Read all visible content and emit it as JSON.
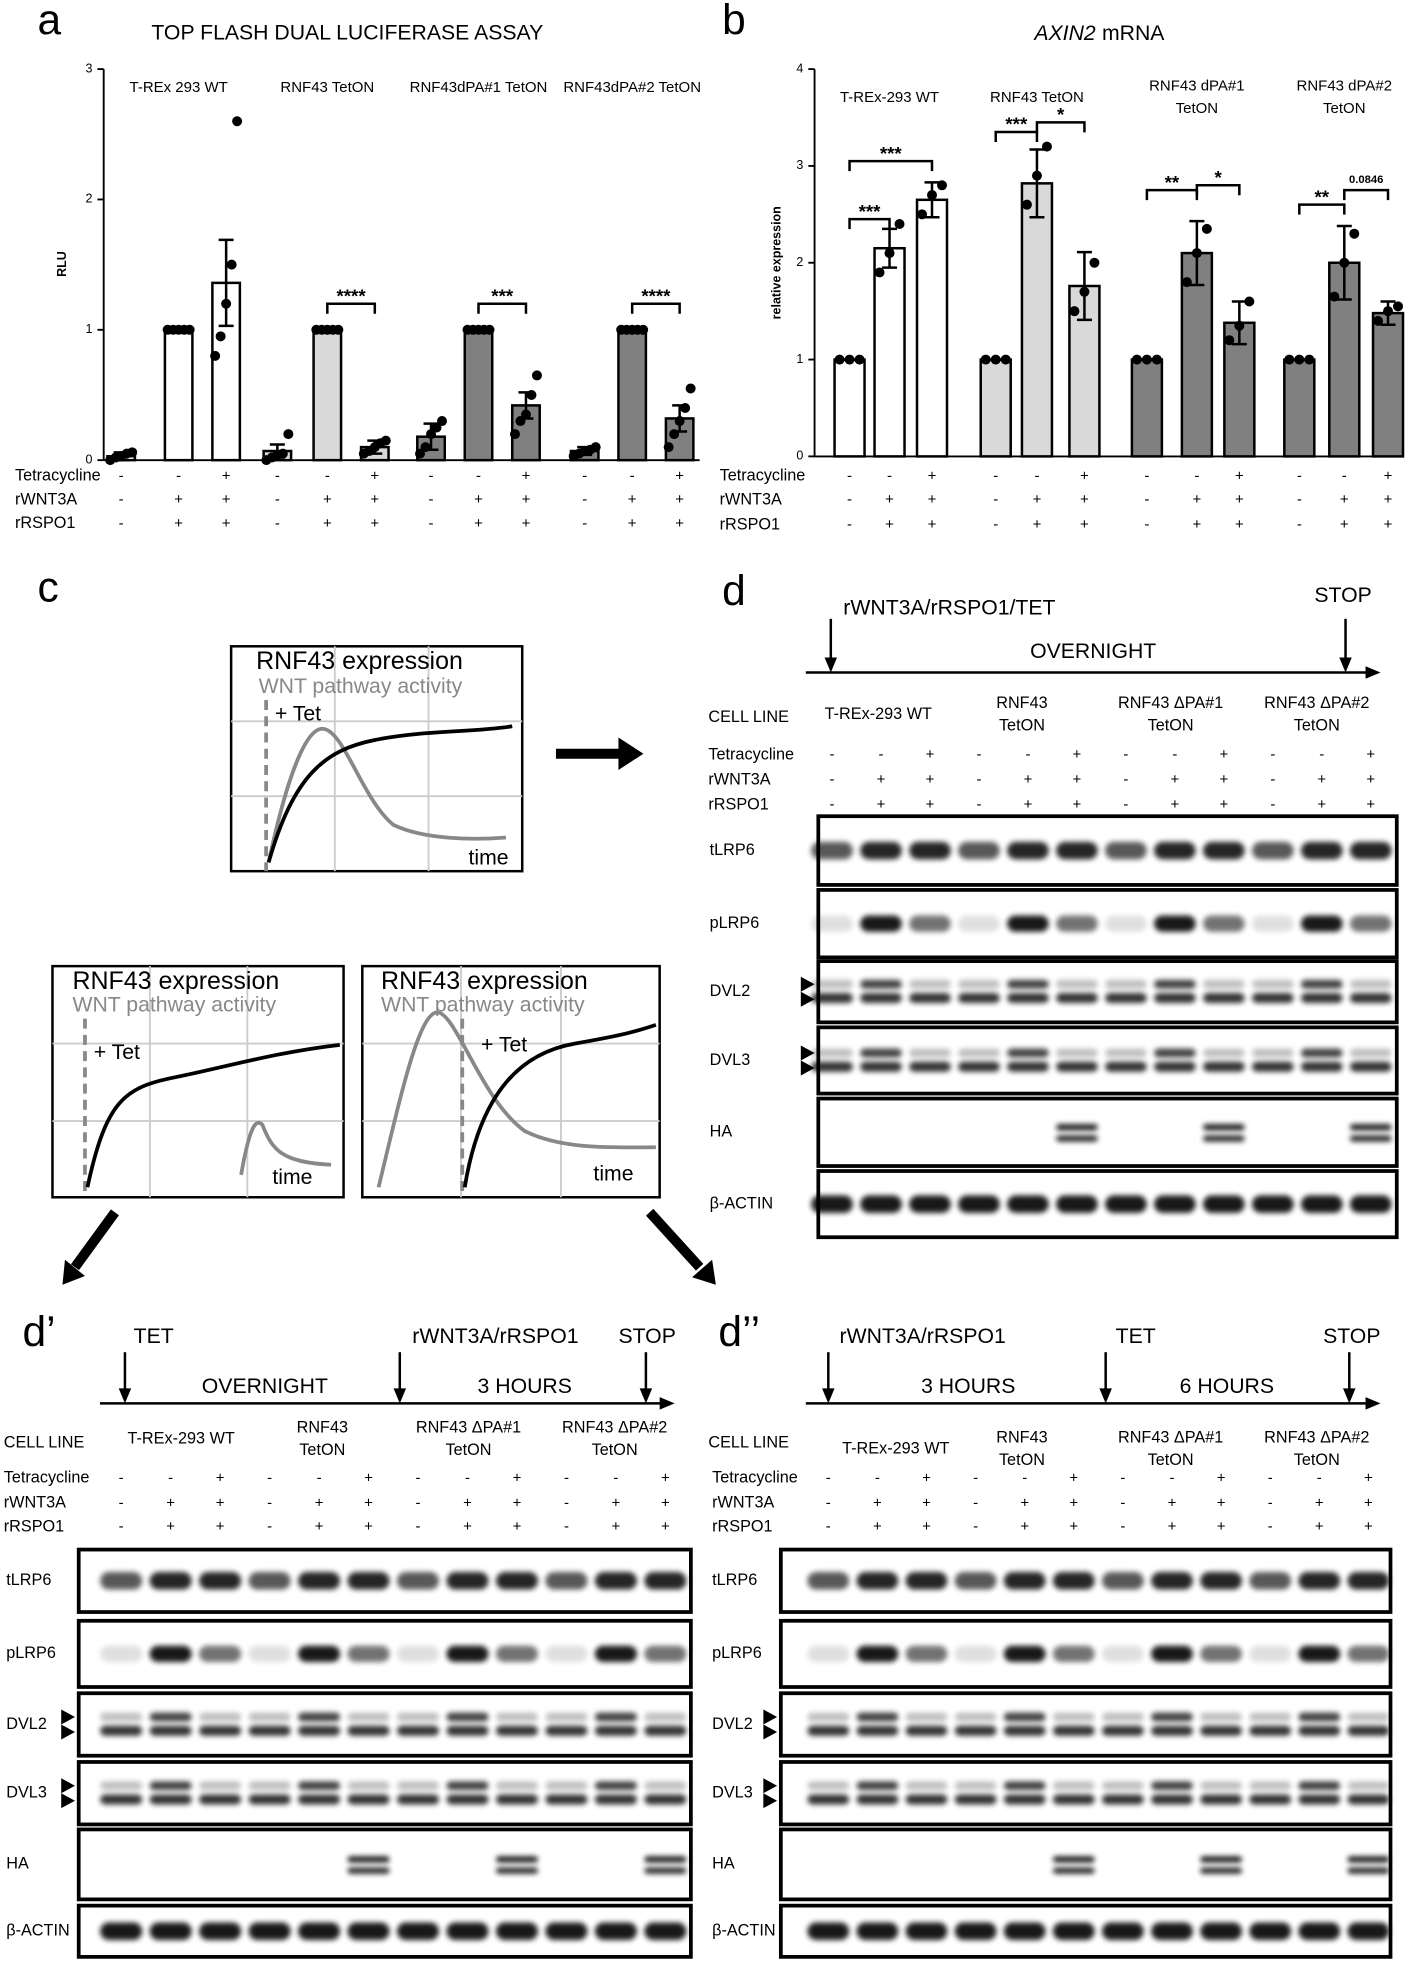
{
  "chart_data": [
    {
      "type": "bar",
      "panel": "a",
      "title": "TOP FLASH DUAL LUCIFERASE ASSAY",
      "y_label": "RLU",
      "groups": [
        [
          "T-REx 293 WT"
        ],
        [
          "RNF43 TetON"
        ],
        [
          "RNF43dPA#1 TetON"
        ],
        [
          "RNF43dPA#2 TetON"
        ]
      ],
      "values": [
        0.03,
        1,
        1.36,
        0.07,
        1,
        0.1,
        0.18,
        1,
        0.42,
        0.07,
        1,
        0.32
      ],
      "errors": [
        0.03,
        0,
        0.33,
        0.05,
        0,
        0.05,
        0.1,
        0,
        0.1,
        0.03,
        0,
        0.1
      ],
      "points": [
        [
          0,
          0.02,
          0.03,
          0.05,
          0.06
        ],
        [
          1,
          1,
          1,
          1,
          1
        ],
        [
          0.8,
          0.95,
          1.2,
          1.5,
          2.6
        ],
        [
          0,
          0.02,
          0.04,
          0.05,
          0.2
        ],
        [
          1,
          1,
          1,
          1,
          1
        ],
        [
          0.05,
          0.07,
          0.1,
          0.13,
          0.15
        ],
        [
          0.05,
          0.1,
          0.2,
          0.25,
          0.3
        ],
        [
          1,
          1,
          1,
          1,
          1
        ],
        [
          0.2,
          0.3,
          0.35,
          0.5,
          0.65
        ],
        [
          0.03,
          0.05,
          0.07,
          0.08,
          0.1
        ],
        [
          1,
          1,
          1,
          1,
          1
        ],
        [
          0.1,
          0.2,
          0.3,
          0.4,
          0.55
        ]
      ],
      "colors": [
        "#ffffff",
        "#ffffff",
        "#ffffff",
        "#d9d9d9",
        "#d9d9d9",
        "#d9d9d9",
        "#808080",
        "#808080",
        "#808080",
        "#808080",
        "#808080",
        "#808080"
      ],
      "ylim": [
        0,
        3
      ],
      "yticks": [
        0,
        1,
        2,
        3
      ],
      "annotations": [
        "****",
        "***",
        "****"
      ],
      "conditions": [
        {
          "label": "Tetracycline",
          "signs": [
            "-",
            "-",
            "+",
            "-",
            "-",
            "+",
            "-",
            "-",
            "+",
            "-",
            "-",
            "+"
          ]
        },
        {
          "label": "rWNT3A",
          "signs": [
            "-",
            "+",
            "+",
            "-",
            "+",
            "+",
            "-",
            "+",
            "+",
            "-",
            "+",
            "+"
          ]
        },
        {
          "label": "rRSPO1",
          "signs": [
            "-",
            "+",
            "+",
            "-",
            "+",
            "+",
            "-",
            "+",
            "+",
            "-",
            "+",
            "+"
          ]
        }
      ]
    },
    {
      "type": "bar",
      "panel": "b",
      "title": [
        "AXIN2",
        "mRNA"
      ],
      "y_label": "relative expression",
      "groups": [
        [
          "T-REx-293 WT"
        ],
        [
          "RNF43 TetON"
        ],
        [
          "RNF43 dPA#1",
          "TetON"
        ],
        [
          "RNF43 dPA#2",
          "TetON"
        ]
      ],
      "values": [
        1,
        2.15,
        2.65,
        1,
        2.82,
        1.76,
        1,
        2.1,
        1.38,
        1,
        2.0,
        1.48
      ],
      "errors": [
        0,
        0.2,
        0.18,
        0,
        0.35,
        0.35,
        0,
        0.33,
        0.22,
        0,
        0.38,
        0.12
      ],
      "points": [
        [
          1,
          1,
          1
        ],
        [
          1.9,
          2.1,
          2.4
        ],
        [
          2.5,
          2.7,
          2.8
        ],
        [
          1,
          1,
          1
        ],
        [
          2.6,
          2.9,
          3.2
        ],
        [
          1.5,
          1.7,
          2.0
        ],
        [
          1,
          1,
          1
        ],
        [
          1.8,
          2.1,
          2.35
        ],
        [
          1.2,
          1.35,
          1.6
        ],
        [
          1,
          1,
          1
        ],
        [
          1.65,
          2.0,
          2.3
        ],
        [
          1.4,
          1.5,
          1.55
        ]
      ],
      "colors": [
        "#ffffff",
        "#ffffff",
        "#ffffff",
        "#d9d9d9",
        "#d9d9d9",
        "#d9d9d9",
        "#808080",
        "#808080",
        "#808080",
        "#808080",
        "#808080",
        "#808080"
      ],
      "ylim": [
        0,
        4
      ],
      "yticks": [
        0,
        1,
        2,
        3,
        4
      ],
      "annotations": [
        "***",
        "***",
        "***",
        "*",
        "**",
        "*",
        "**",
        "0.0846"
      ],
      "conditions": [
        {
          "label": "Tetracycline",
          "signs": [
            "-",
            "-",
            "+",
            "-",
            "-",
            "+",
            "-",
            "-",
            "+",
            "-",
            "-",
            "+"
          ]
        },
        {
          "label": "rWNT3A",
          "signs": [
            "-",
            "+",
            "+",
            "-",
            "+",
            "+",
            "-",
            "+",
            "+",
            "-",
            "+",
            "+"
          ]
        },
        {
          "label": "rRSPO1",
          "signs": [
            "-",
            "+",
            "+",
            "-",
            "+",
            "+",
            "-",
            "+",
            "+",
            "-",
            "+",
            "+"
          ]
        }
      ]
    }
  ],
  "panel_c": {
    "label": "c",
    "diagrams": [
      {
        "expression": "RNF43 expression",
        "activity": "WNT pathway activity",
        "tet": "+ Tet",
        "time": "time"
      },
      {
        "expression": "RNF43 expression",
        "activity": "WNT pathway activity",
        "tet": "+ Tet",
        "time": "time"
      },
      {
        "expression": "RNF43 expression",
        "activity": "WNT pathway activity",
        "tet": "+ Tet",
        "time": "time"
      }
    ]
  },
  "blots": [
    {
      "label": "d",
      "events": [
        "rWNT3A/rRSPO1/TET",
        "STOP"
      ],
      "periods": [
        "OVERNIGHT"
      ],
      "cell_line_header": "CELL LINE",
      "cell_lines": [
        [
          "T-REx-293 WT"
        ],
        [
          "RNF43",
          "TetON"
        ],
        [
          "RNF43 ΔPA#1",
          "TetON"
        ],
        [
          "RNF43 ΔPA#2",
          "TetON"
        ]
      ],
      "conditions": [
        {
          "label": "Tetracycline",
          "signs": [
            "-",
            "-",
            "+",
            "-",
            "-",
            "+",
            "-",
            "-",
            "+",
            "-",
            "-",
            "+"
          ]
        },
        {
          "label": "rWNT3A",
          "signs": [
            "-",
            "+",
            "+",
            "-",
            "+",
            "+",
            "-",
            "+",
            "+",
            "-",
            "+",
            "+"
          ]
        },
        {
          "label": "rRSPO1",
          "signs": [
            "-",
            "+",
            "+",
            "-",
            "+",
            "+",
            "-",
            "+",
            "+",
            "-",
            "+",
            "+"
          ]
        }
      ],
      "rows": [
        "tLRP6",
        "pLRP6",
        "DVL2",
        "DVL3",
        "HA",
        "β-ACTIN"
      ]
    },
    {
      "label": "d’",
      "events": [
        "TET",
        "rWNT3A/rRSPO1",
        "STOP"
      ],
      "periods": [
        "OVERNIGHT",
        "3 HOURS"
      ],
      "cell_line_header": "CELL LINE",
      "cell_lines": [
        [
          "T-REx-293 WT"
        ],
        [
          "RNF43",
          "TetON"
        ],
        [
          "RNF43 ΔPA#1",
          "TetON"
        ],
        [
          "RNF43 ΔPA#2",
          "TetON"
        ]
      ],
      "conditions": [
        {
          "label": "Tetracycline",
          "signs": [
            "-",
            "-",
            "+",
            "-",
            "-",
            "+",
            "-",
            "-",
            "+",
            "-",
            "-",
            "+"
          ]
        },
        {
          "label": "rWNT3A",
          "signs": [
            "-",
            "+",
            "+",
            "-",
            "+",
            "+",
            "-",
            "+",
            "+",
            "-",
            "+",
            "+"
          ]
        },
        {
          "label": "rRSPO1",
          "signs": [
            "-",
            "+",
            "+",
            "-",
            "+",
            "+",
            "-",
            "+",
            "+",
            "-",
            "+",
            "+"
          ]
        }
      ],
      "rows": [
        "tLRP6",
        "pLRP6",
        "DVL2",
        "DVL3",
        "HA",
        "β-ACTIN"
      ]
    },
    {
      "label": "d’’",
      "events": [
        "rWNT3A/rRSPO1",
        "TET",
        "STOP"
      ],
      "periods": [
        "3 HOURS",
        "6 HOURS"
      ],
      "cell_line_header": "CELL LINE",
      "cell_lines": [
        [
          "T-REx-293 WT"
        ],
        [
          "RNF43",
          "TetON"
        ],
        [
          "RNF43 ΔPA#1",
          "TetON"
        ],
        [
          "RNF43 ΔPA#2",
          "TetON"
        ]
      ],
      "conditions": [
        {
          "label": "Tetracycline",
          "signs": [
            "-",
            "-",
            "+",
            "-",
            "-",
            "+",
            "-",
            "-",
            "+",
            "-",
            "-",
            "+"
          ]
        },
        {
          "label": "rWNT3A",
          "signs": [
            "-",
            "+",
            "+",
            "-",
            "+",
            "+",
            "-",
            "+",
            "+",
            "-",
            "+",
            "+"
          ]
        },
        {
          "label": "rRSPO1",
          "signs": [
            "-",
            "+",
            "+",
            "-",
            "+",
            "+",
            "-",
            "+",
            "+",
            "-",
            "+",
            "+"
          ]
        }
      ],
      "rows": [
        "tLRP6",
        "pLRP6",
        "DVL2",
        "DVL3",
        "HA",
        "β-ACTIN"
      ]
    }
  ]
}
